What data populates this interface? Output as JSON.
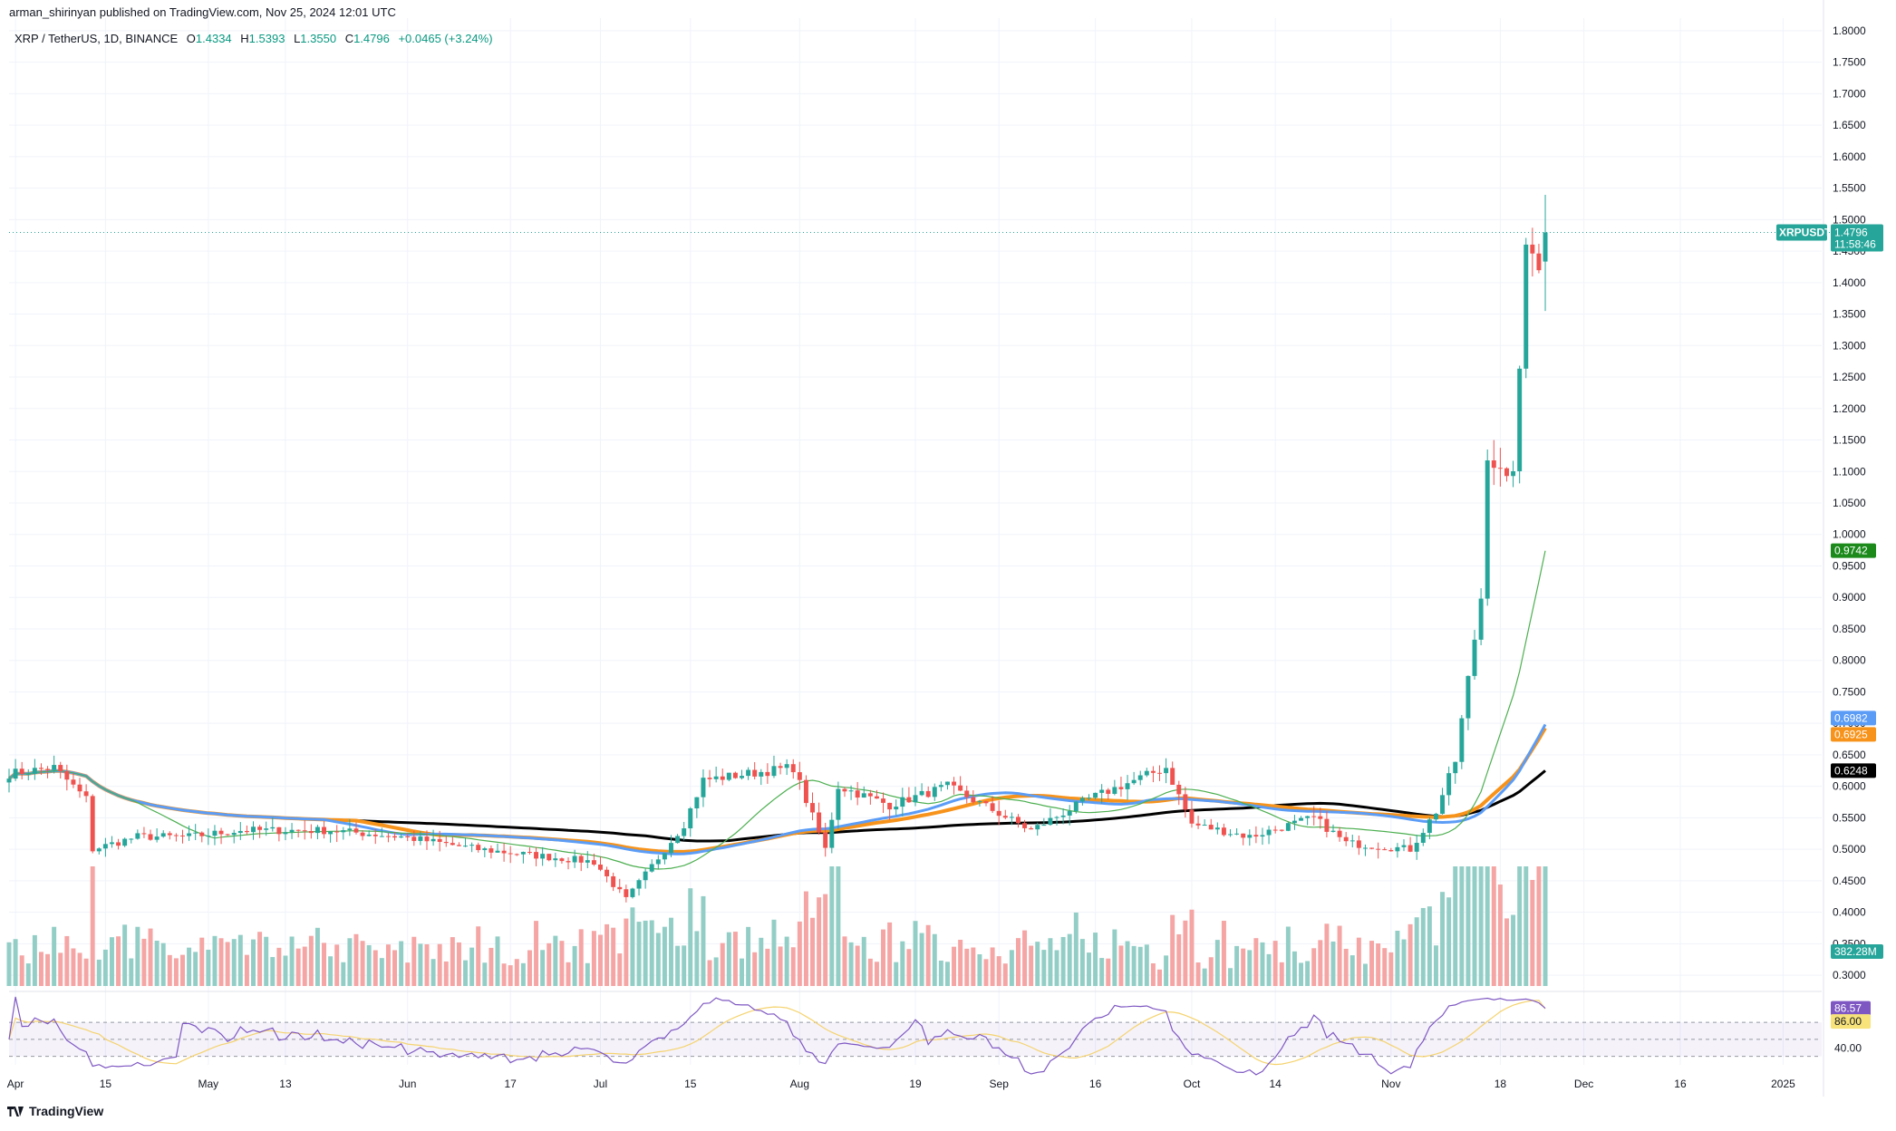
{
  "header": {
    "published": "arman_shirinyan published on TradingView.com, Nov 25, 2024 12:01 UTC",
    "symbol": "XRP / TetherUS, 1D, BINANCE",
    "ohlc": {
      "o_label": "O",
      "o": "1.4334",
      "h_label": "H",
      "h": "1.5393",
      "l_label": "L",
      "l": "1.3550",
      "c_label": "C",
      "c": "1.4796",
      "change": "+0.0465 (+3.24%)"
    }
  },
  "brand": {
    "name": "TradingView"
  },
  "colors": {
    "up": "#26a69a",
    "down": "#ef5350",
    "volume_up": "#93cec6",
    "volume_down": "#f4a5a4",
    "ma_fast": "#4caf50",
    "ma_blue": "#5b9cf6",
    "ma_orange": "#f7931a",
    "ma_black": "#000000",
    "rsi": "#7e57c2",
    "rsi_ma": "#f5d36d"
  },
  "chart_data": {
    "type": "candlestick",
    "symbol": "XRPUSDT",
    "timeframe": "1D",
    "ylim": [
      0.28,
      1.82
    ],
    "y_ticks": [
      "1.8000",
      "1.7500",
      "1.7000",
      "1.6500",
      "1.6000",
      "1.5500",
      "1.5000",
      "1.4500",
      "1.4000",
      "1.3500",
      "1.3000",
      "1.2500",
      "1.2000",
      "1.1500",
      "1.1000",
      "1.0500",
      "1.0000",
      "0.9500",
      "0.9000",
      "0.8500",
      "0.8000",
      "0.7500",
      "0.7000",
      "0.6500",
      "0.6000",
      "0.5500",
      "0.5000",
      "0.4500",
      "0.4000",
      "0.3500",
      "0.3000"
    ],
    "x_tick_labels": [
      {
        "label": "Apr",
        "date": "2024-04-01"
      },
      {
        "label": "15",
        "date": "2024-04-15"
      },
      {
        "label": "May",
        "date": "2024-05-01"
      },
      {
        "label": "13",
        "date": "2024-05-13"
      },
      {
        "label": "Jun",
        "date": "2024-06-01"
      },
      {
        "label": "17",
        "date": "2024-06-17"
      },
      {
        "label": "Jul",
        "date": "2024-07-01"
      },
      {
        "label": "15",
        "date": "2024-07-15"
      },
      {
        "label": "Aug",
        "date": "2024-08-01"
      },
      {
        "label": "19",
        "date": "2024-08-19"
      },
      {
        "label": "Sep",
        "date": "2024-09-01"
      },
      {
        "label": "16",
        "date": "2024-09-16"
      },
      {
        "label": "Oct",
        "date": "2024-10-01"
      },
      {
        "label": "14",
        "date": "2024-10-14"
      },
      {
        "label": "Nov",
        "date": "2024-11-01"
      },
      {
        "label": "18",
        "date": "2024-11-18"
      },
      {
        "label": "Dec",
        "date": "2024-12-01"
      },
      {
        "label": "16",
        "date": "2024-12-16"
      },
      {
        "label": "2025",
        "date": "2025-01-01"
      }
    ],
    "price_keypoints": [
      [
        "2024-03-31",
        0.62
      ],
      [
        "2024-04-07",
        0.63
      ],
      [
        "2024-04-12",
        0.58
      ],
      [
        "2024-04-13",
        0.5
      ],
      [
        "2024-04-20",
        0.52
      ],
      [
        "2024-04-28",
        0.52
      ],
      [
        "2024-05-06",
        0.53
      ],
      [
        "2024-05-20",
        0.53
      ],
      [
        "2024-05-31",
        0.52
      ],
      [
        "2024-06-12",
        0.5
      ],
      [
        "2024-06-30",
        0.48
      ],
      [
        "2024-07-05",
        0.42
      ],
      [
        "2024-07-14",
        0.54
      ],
      [
        "2024-07-17",
        0.61
      ],
      [
        "2024-07-31",
        0.63
      ],
      [
        "2024-08-05",
        0.5
      ],
      [
        "2024-08-07",
        0.6
      ],
      [
        "2024-08-15",
        0.57
      ],
      [
        "2024-08-24",
        0.6
      ],
      [
        "2024-09-06",
        0.53
      ],
      [
        "2024-09-15",
        0.58
      ],
      [
        "2024-09-27",
        0.63
      ],
      [
        "2024-10-01",
        0.54
      ],
      [
        "2024-10-10",
        0.52
      ],
      [
        "2024-10-20",
        0.55
      ],
      [
        "2024-10-25",
        0.51
      ],
      [
        "2024-11-04",
        0.5
      ],
      [
        "2024-11-08",
        0.56
      ],
      [
        "2024-11-11",
        0.64
      ],
      [
        "2024-11-13",
        0.77
      ],
      [
        "2024-11-15",
        0.9
      ],
      [
        "2024-11-16",
        1.13
      ],
      [
        "2024-11-19",
        1.08
      ],
      [
        "2024-11-20",
        1.11
      ],
      [
        "2024-11-21",
        1.25
      ],
      [
        "2024-11-22",
        1.46
      ],
      [
        "2024-11-23",
        1.46
      ],
      [
        "2024-11-24",
        1.43
      ],
      [
        "2024-11-25",
        1.4796
      ]
    ],
    "last_candle": {
      "date": "2024-11-25",
      "open": 1.4334,
      "high": 1.5393,
      "low": 1.355,
      "close": 1.4796
    },
    "moving_averages": [
      {
        "color_key": "ma_fast",
        "last": 0.9742,
        "label": "0.9742"
      },
      {
        "color_key": "ma_blue",
        "last": 0.6982,
        "label": "0.6982"
      },
      {
        "color_key": "ma_orange",
        "last": 0.6925,
        "label": "0.6925"
      },
      {
        "color_key": "ma_black",
        "last": 0.6248,
        "label": "0.6248"
      }
    ],
    "volume": {
      "last_label": "382.28M"
    },
    "rsi": {
      "value": 86.57,
      "value_label": "86.57",
      "ma": 86.0,
      "ma_label": "86.00",
      "tick_label": "40.00",
      "levels": [
        70,
        50,
        30
      ]
    },
    "price_label": {
      "symbol": "XRPUSDT",
      "price": "1.4796",
      "countdown": "11:58:46"
    }
  }
}
